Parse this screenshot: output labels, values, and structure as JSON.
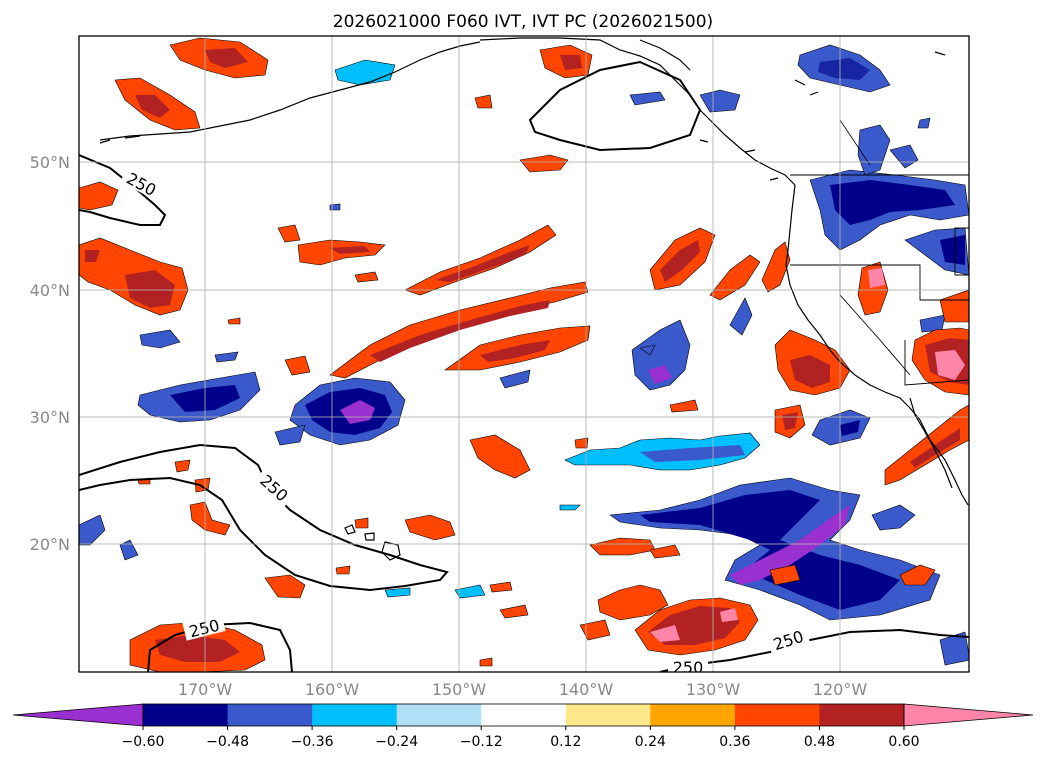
{
  "title": "2026021000 F060 IVT, IVT PC (2026021500)",
  "lat_labels": [
    "50°N",
    "40°N",
    "30°N",
    "20°N"
  ],
  "lon_labels": [
    "170°W",
    "160°W",
    "150°W",
    "140°W",
    "130°W",
    "120°W"
  ],
  "contour_level": "250",
  "colorbar": {
    "ticks": [
      "−0.60",
      "−0.48",
      "−0.36",
      "−0.24",
      "−0.12",
      "0.12",
      "0.24",
      "0.36",
      "0.48",
      "0.60"
    ],
    "colors": [
      "#9b30d0",
      "#00008b",
      "#3a5acb",
      "#00bfff",
      "#b0e0f8",
      "#ffffff",
      "#ffe88c",
      "#ffa500",
      "#ff4500",
      "#b22222",
      "#ff85a8"
    ]
  },
  "colors": {
    "coast": "#000000",
    "grid": "#b0b0b0",
    "neg_light": "#00bfff",
    "neg_mid": "#3a5acb",
    "neg_dark": "#00008b",
    "neg_darkest": "#9b30d0",
    "pos_light": "#ffd24a",
    "pos_mid": "#ff4500",
    "pos_dark": "#b22222",
    "pos_darkest": "#ff85a8"
  }
}
